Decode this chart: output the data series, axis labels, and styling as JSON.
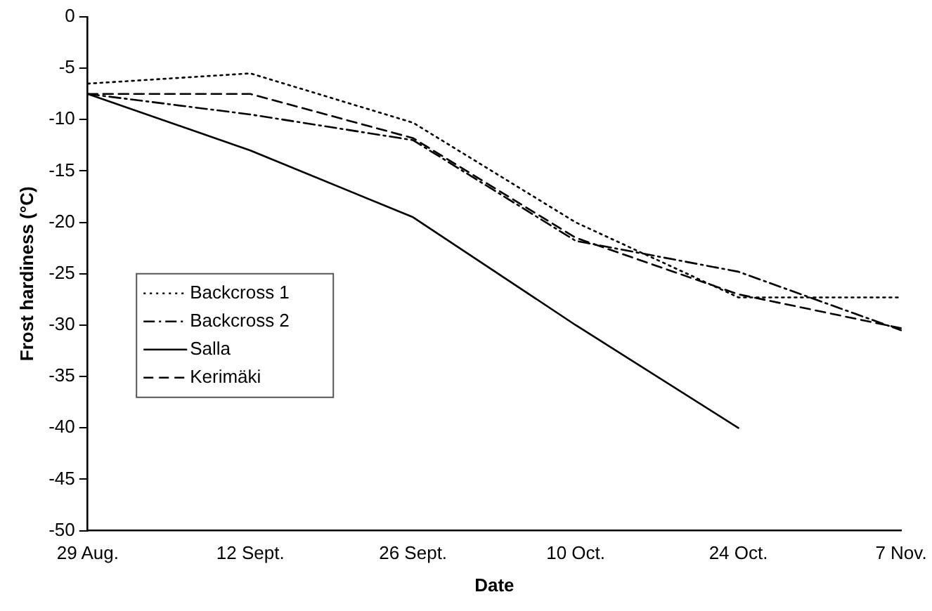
{
  "chart_data": {
    "type": "line",
    "xlabel": "Date",
    "ylabel": "Frost hardiness (°C)",
    "categories": [
      "29 Aug.",
      "12 Sept.",
      "26 Sept.",
      "10 Oct.",
      "24 Oct.",
      "7 Nov."
    ],
    "ylim": [
      -50,
      0
    ],
    "yticks": [
      -50,
      -45,
      -40,
      -35,
      -30,
      -25,
      -20,
      -15,
      -10,
      -5,
      0
    ],
    "grid": false,
    "legend": "left",
    "marker": "none",
    "series": [
      {
        "name": "Backcross 1",
        "color": "#000000",
        "line_style": "dotted",
        "values": [
          -6.5,
          -5.5,
          -10.3,
          -20,
          -27.3,
          -27.3
        ]
      },
      {
        "name": "Backcross 2",
        "color": "#000000",
        "line_style": "dashdot",
        "values": [
          -7.5,
          -9.5,
          -12,
          -21.8,
          -24.8,
          -30.5
        ]
      },
      {
        "name": "Salla",
        "color": "#000000",
        "line_style": "solid",
        "values": [
          -7.5,
          -13,
          -19.5,
          -30,
          -40,
          null
        ]
      },
      {
        "name": "Kerimäki",
        "color": "#000000",
        "line_style": "dashed",
        "values": [
          -7.5,
          -7.5,
          -11.8,
          -21.5,
          -27,
          -30.3
        ]
      }
    ]
  }
}
